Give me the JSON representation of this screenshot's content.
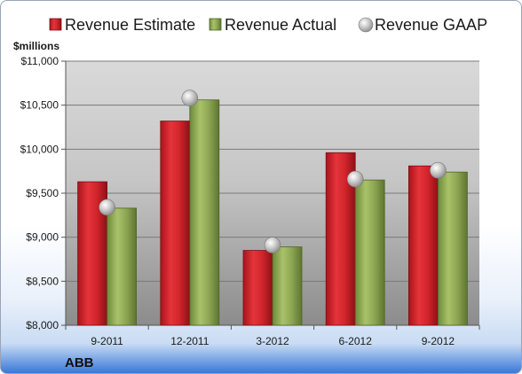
{
  "chart_data": {
    "type": "bar",
    "unit_label": "$millions",
    "company": "ABB",
    "categories": [
      "9-2011",
      "12-2011",
      "3-2012",
      "6-2012",
      "9-2012"
    ],
    "series": [
      {
        "name": "Revenue Estimate",
        "kind": "bar",
        "color": "#d4222a",
        "values": [
          9630,
          10320,
          8850,
          9960,
          9810
        ]
      },
      {
        "name": "Revenue Actual",
        "kind": "bar",
        "color": "#8ba452",
        "values": [
          9330,
          10560,
          8890,
          9650,
          9740
        ]
      },
      {
        "name": "Revenue GAAP",
        "kind": "point",
        "color": "#b8b8b8",
        "values": [
          9340,
          10580,
          8910,
          9660,
          9760
        ]
      }
    ],
    "ylim": [
      8000,
      11000
    ],
    "yticks": [
      8000,
      8500,
      9000,
      9500,
      10000,
      10500,
      11000
    ],
    "ytick_labels": [
      "$8,000",
      "$8,500",
      "$9,000",
      "$9,500",
      "$10,000",
      "$10,500",
      "$11,000"
    ],
    "legend_position": "top",
    "grid": true
  }
}
